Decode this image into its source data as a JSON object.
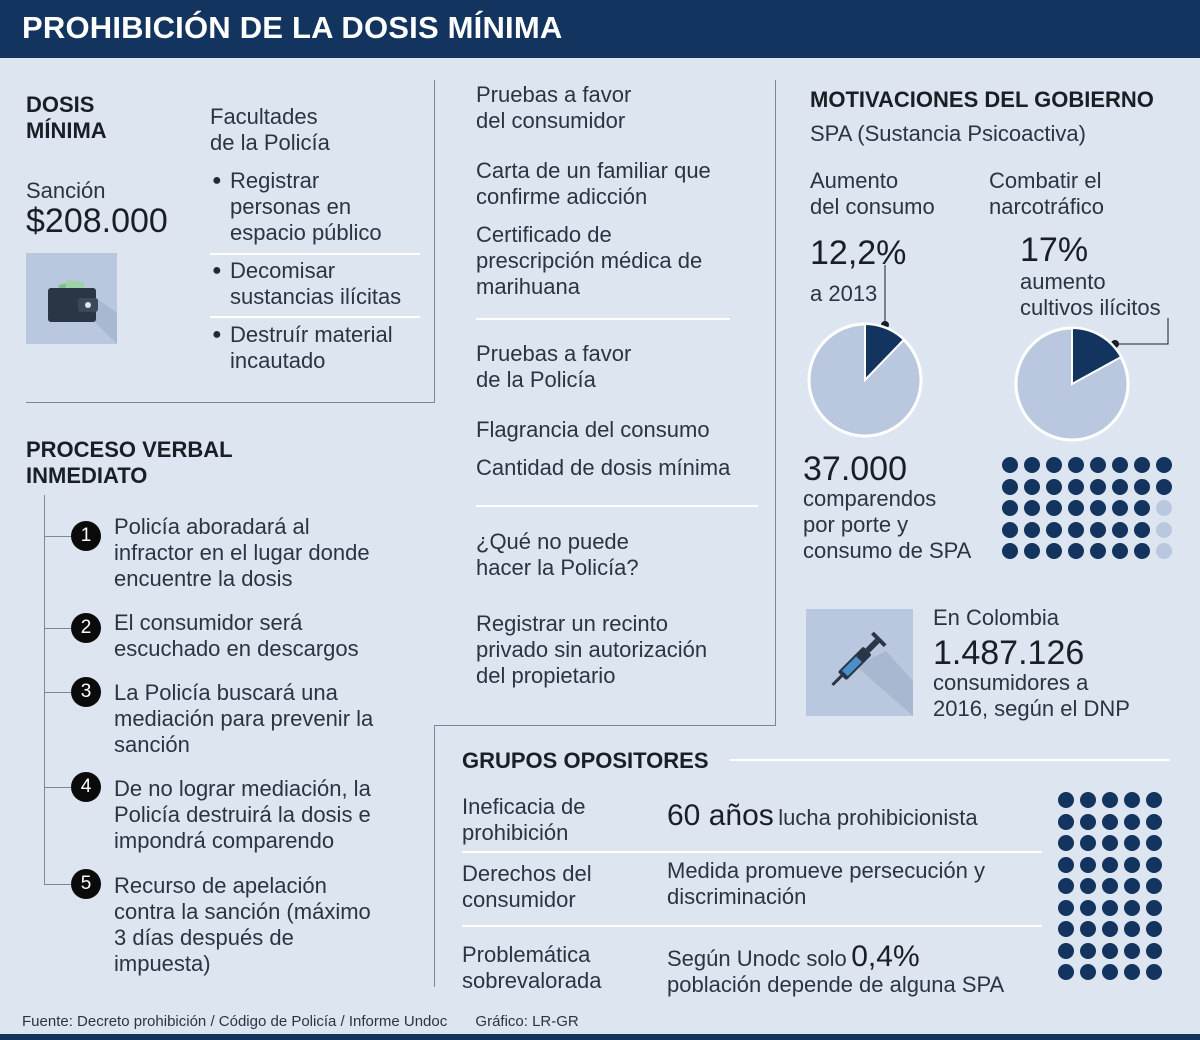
{
  "header": {
    "title": "PROHIBICIÓN DE LA DOSIS MÍNIMA"
  },
  "dosis": {
    "title_l1": "DOSIS",
    "title_l2": "MÍNIMA",
    "sancion_label": "Sanción",
    "sancion_value": "$208.000",
    "wallet_icon": "wallet-icon"
  },
  "facultades": {
    "title_l1": "Facultades",
    "title_l2": "de la Policía",
    "items": [
      [
        "Registrar",
        "personas en",
        "espacio público"
      ],
      [
        "Decomisar",
        "sustancias ilícitas"
      ],
      [
        "Destruír material",
        "incautado"
      ]
    ]
  },
  "proceso": {
    "title_l1": "PROCESO VERBAL",
    "title_l2": "INMEDIATO",
    "steps": [
      {
        "num": "1",
        "lines": [
          "Policía aboradará al",
          "infractor en el lugar donde",
          "encuentre la dosis"
        ]
      },
      {
        "num": "2",
        "lines": [
          "El consumidor será",
          "escuchado en descargos"
        ]
      },
      {
        "num": "3",
        "lines": [
          "La Policía buscará una",
          "mediación para prevenir la",
          "sanción"
        ]
      },
      {
        "num": "4",
        "lines": [
          "De no lograr mediación, la",
          "Policía destruirá la dosis e",
          "impondrá comparendo"
        ]
      },
      {
        "num": "5",
        "lines": [
          "Recurso de apelación",
          "contra la sanción (máximo",
          "3 días después de",
          "impuesta)"
        ]
      }
    ]
  },
  "pruebas_consumidor": {
    "title_l1": "Pruebas a favor",
    "title_l2": "del consumidor",
    "item1": [
      "Carta de un familiar que",
      "confirme adicción"
    ],
    "item2": [
      "Certificado de",
      "prescripción médica de",
      "marihuana"
    ]
  },
  "pruebas_policia": {
    "title_l1": "Pruebas a favor",
    "title_l2": "de la Policía",
    "item1": "Flagrancia del consumo",
    "item2": "Cantidad de dosis mínima"
  },
  "no_puede": {
    "title_l1": "¿Qué no puede",
    "title_l2": "hacer la Policía?",
    "lines": [
      "Registrar un recinto",
      "privado sin autorización",
      "del propietario"
    ]
  },
  "motivaciones": {
    "title": "MOTIVACIONES DEL GOBIERNO",
    "subtitle": "SPA (Sustancia Psicoactiva)",
    "aumento": {
      "title_l1": "Aumento",
      "title_l2": "del consumo",
      "value": "12,2%",
      "note": "a 2013",
      "pct": 12.2
    },
    "combatir": {
      "title_l1": "Combatir el",
      "title_l2": "narcotráfico",
      "value": "17%",
      "note_l1": "aumento",
      "note_l2": "cultivos ilícitos",
      "pct": 17
    },
    "comparendos": {
      "value": "37.000",
      "lines": [
        "comparendos",
        "por porte y",
        "consumo de SPA"
      ]
    },
    "colombia": {
      "l1": "En Colombia",
      "value": "1.487.126",
      "l2": "consumidores a",
      "l3": "2016, según el DNP",
      "icon": "syringe-icon"
    }
  },
  "opositores": {
    "title": "GRUPOS OPOSITORES",
    "rows": [
      {
        "label": [
          "Ineficacia de",
          "prohibición"
        ],
        "big": "60 años",
        "rest": "lucha prohibicionista"
      },
      {
        "label": [
          "Derechos del",
          "consumidor"
        ],
        "lines": [
          "Medida promueve persecución y",
          "discriminación"
        ]
      },
      {
        "label": [
          "Problemática",
          "sobrevalorada"
        ],
        "pre": "Según Unodc solo",
        "big": "0,4%",
        "line2": "población depende de alguna SPA"
      }
    ]
  },
  "footer": {
    "source": "Fuente: Decreto prohibición / Código de Policía / Informe Undoc",
    "credit": "Gráfico: LR-GR"
  },
  "colors": {
    "navy": "#12345e",
    "dot_dark": "#12345e",
    "dot_light": "#b9c8de",
    "pie_light": "#b9c8de"
  }
}
